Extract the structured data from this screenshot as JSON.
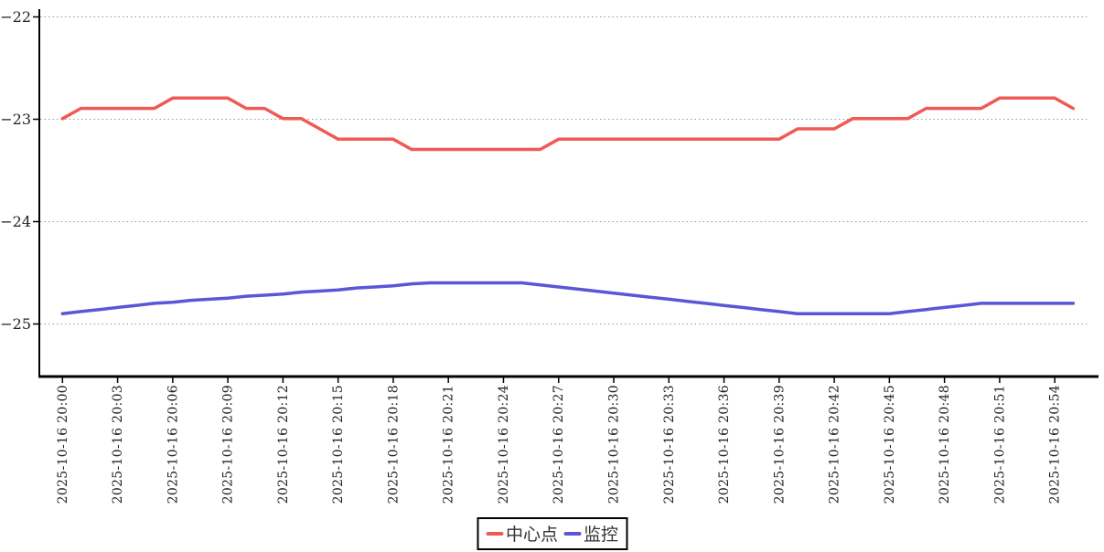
{
  "chart_data": {
    "type": "line",
    "title": "",
    "xlabel": "",
    "ylabel": "",
    "grid": true,
    "legend_position": "bottom",
    "x": [
      "2025-10-16 20:00",
      "2025-10-16 20:01",
      "2025-10-16 20:02",
      "2025-10-16 20:03",
      "2025-10-16 20:04",
      "2025-10-16 20:05",
      "2025-10-16 20:06",
      "2025-10-16 20:07",
      "2025-10-16 20:08",
      "2025-10-16 20:09",
      "2025-10-16 20:10",
      "2025-10-16 20:11",
      "2025-10-16 20:12",
      "2025-10-16 20:13",
      "2025-10-16 20:14",
      "2025-10-16 20:15",
      "2025-10-16 20:16",
      "2025-10-16 20:17",
      "2025-10-16 20:18",
      "2025-10-16 20:19",
      "2025-10-16 20:20",
      "2025-10-16 20:21",
      "2025-10-16 20:22",
      "2025-10-16 20:23",
      "2025-10-16 20:24",
      "2025-10-16 20:25",
      "2025-10-16 20:26",
      "2025-10-16 20:27",
      "2025-10-16 20:28",
      "2025-10-16 20:29",
      "2025-10-16 20:30",
      "2025-10-16 20:31",
      "2025-10-16 20:32",
      "2025-10-16 20:33",
      "2025-10-16 20:34",
      "2025-10-16 20:35",
      "2025-10-16 20:36",
      "2025-10-16 20:37",
      "2025-10-16 20:38",
      "2025-10-16 20:39",
      "2025-10-16 20:40",
      "2025-10-16 20:41",
      "2025-10-16 20:42",
      "2025-10-16 20:43",
      "2025-10-16 20:44",
      "2025-10-16 20:45",
      "2025-10-16 20:46",
      "2025-10-16 20:47",
      "2025-10-16 20:48",
      "2025-10-16 20:49",
      "2025-10-16 20:50",
      "2025-10-16 20:51",
      "2025-10-16 20:52",
      "2025-10-16 20:53",
      "2025-10-16 20:54",
      "2025-10-16 20:55"
    ],
    "series": [
      {
        "name": "中心点",
        "color": "#ef5a55",
        "values": [
          -23.0,
          -22.9,
          -22.9,
          -22.9,
          -22.9,
          -22.9,
          -22.8,
          -22.8,
          -22.8,
          -22.8,
          -22.9,
          -22.9,
          -23.0,
          -23.0,
          -23.1,
          -23.2,
          -23.2,
          -23.2,
          -23.2,
          -23.3,
          -23.3,
          -23.3,
          -23.3,
          -23.3,
          -23.3,
          -23.3,
          -23.3,
          -23.2,
          -23.2,
          -23.2,
          -23.2,
          -23.2,
          -23.2,
          -23.2,
          -23.2,
          -23.2,
          -23.2,
          -23.2,
          -23.2,
          -23.2,
          -23.1,
          -23.1,
          -23.1,
          -23.0,
          -23.0,
          -23.0,
          -23.0,
          -22.9,
          -22.9,
          -22.9,
          -22.9,
          -22.8,
          -22.8,
          -22.8,
          -22.8,
          -22.9
        ]
      },
      {
        "name": "监控",
        "color": "#5a56d6",
        "values": [
          -24.9,
          -24.88,
          -24.86,
          -24.84,
          -24.82,
          -24.8,
          -24.79,
          -24.77,
          -24.76,
          -24.75,
          -24.73,
          -24.72,
          -24.71,
          -24.69,
          -24.68,
          -24.67,
          -24.65,
          -24.64,
          -24.63,
          -24.61,
          -24.6,
          -24.6,
          -24.6,
          -24.6,
          -24.6,
          -24.6,
          -24.62,
          -24.64,
          -24.66,
          -24.68,
          -24.7,
          -24.72,
          -24.74,
          -24.76,
          -24.78,
          -24.8,
          -24.82,
          -24.84,
          -24.86,
          -24.88,
          -24.9,
          -24.9,
          -24.9,
          -24.9,
          -24.9,
          -24.9,
          -24.88,
          -24.86,
          -24.84,
          -24.82,
          -24.8,
          -24.8,
          -24.8,
          -24.8,
          -24.8,
          -24.8
        ]
      }
    ],
    "x_tick_labels": [
      "2025-10-16 20:00",
      "2025-10-16 20:03",
      "2025-10-16 20:06",
      "2025-10-16 20:09",
      "2025-10-16 20:12",
      "2025-10-16 20:15",
      "2025-10-16 20:18",
      "2025-10-16 20:21",
      "2025-10-16 20:24",
      "2025-10-16 20:27",
      "2025-10-16 20:30",
      "2025-10-16 20:33",
      "2025-10-16 20:36",
      "2025-10-16 20:39",
      "2025-10-16 20:42",
      "2025-10-16 20:45",
      "2025-10-16 20:48",
      "2025-10-16 20:51",
      "2025-10-16 20:54"
    ],
    "y_ticks": [
      -22,
      -23,
      -24,
      -25
    ],
    "y_tick_labels": [
      "−22",
      "−23",
      "−24",
      "−25"
    ],
    "ylim": [
      -25.5,
      -21.95
    ],
    "colors": {
      "axis": "#000000",
      "grid": "#999999",
      "tick_label": "#222222",
      "legend_border": "#000000",
      "legend_text": "#333333",
      "background": "#ffffff"
    }
  }
}
